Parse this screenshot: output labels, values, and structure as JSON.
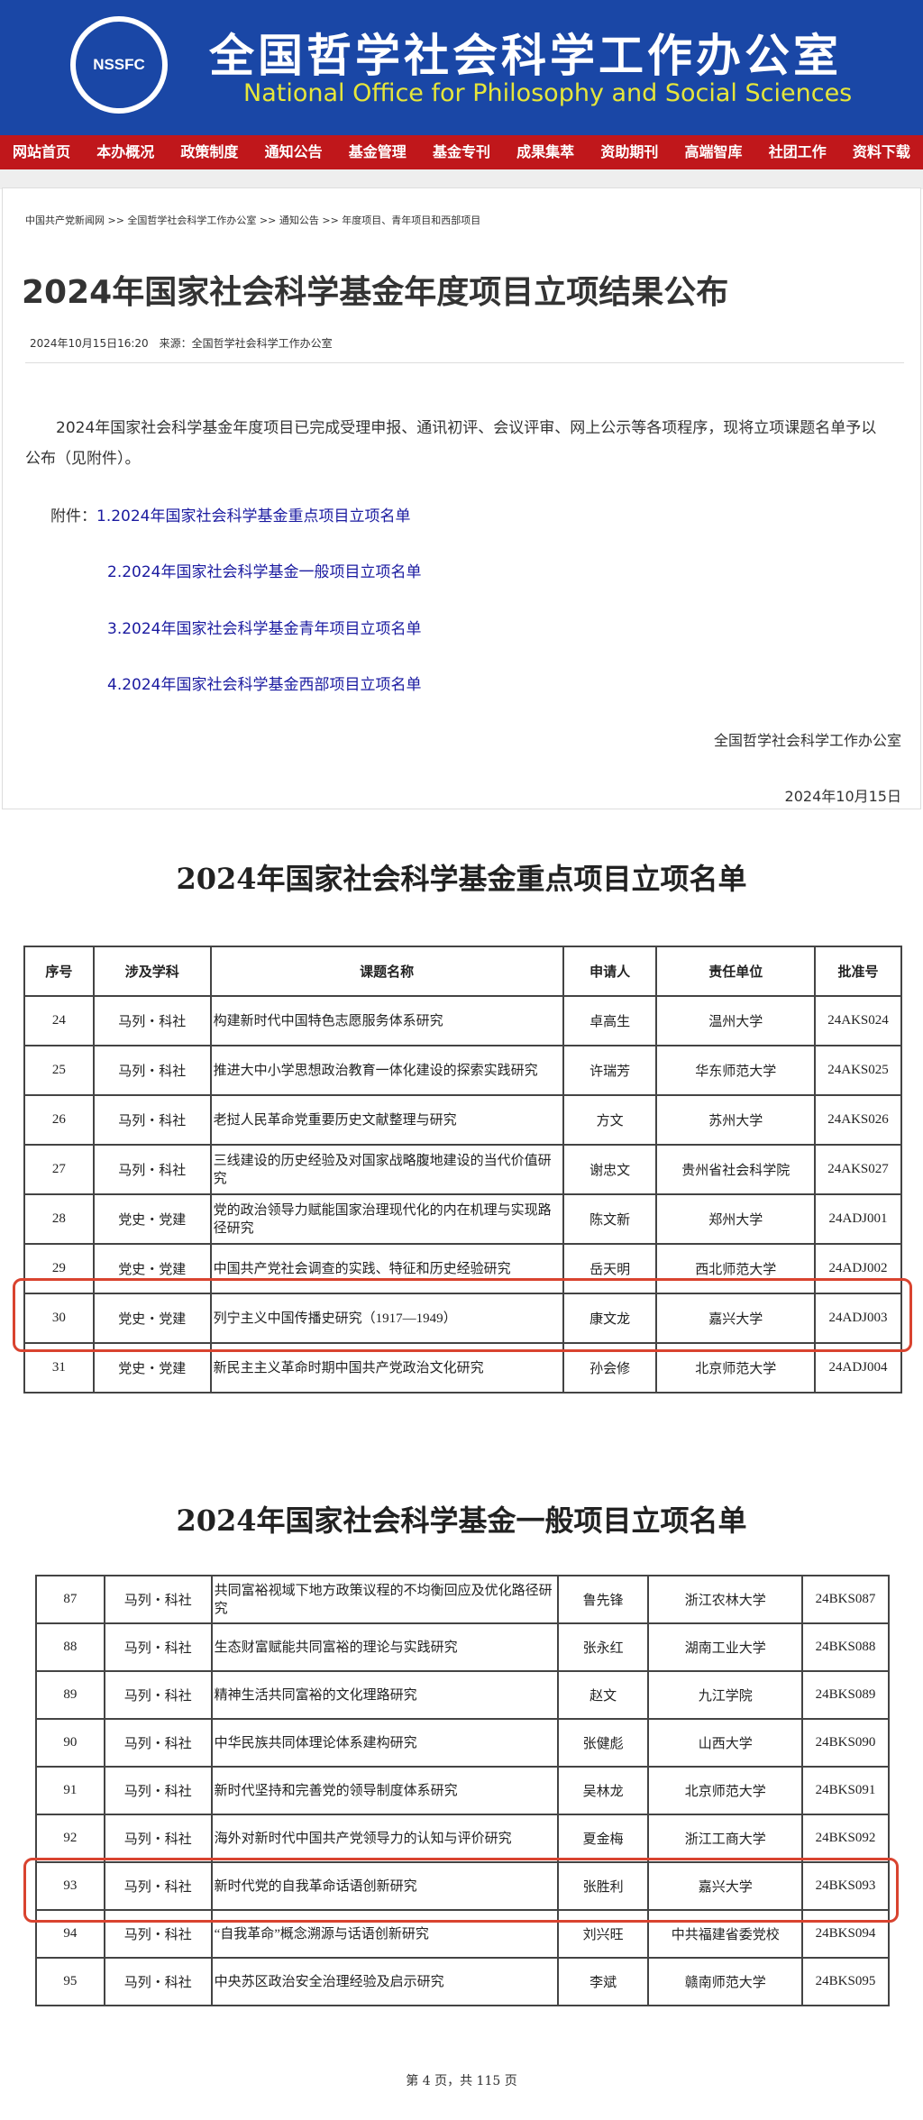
{
  "header": {
    "logo_text": "NSSFC",
    "title": "全国哲学社会科学工作办公室",
    "subtitle": "National Office for Philosophy and Social Sciences"
  },
  "nav": [
    "网站首页",
    "本办概况",
    "政策制度",
    "通知公告",
    "基金管理",
    "基金专刊",
    "成果集萃",
    "资助期刊",
    "高端智库",
    "社团工作",
    "资料下载"
  ],
  "breadcrumb": "中国共产党新闻网 >> 全国哲学社会科学工作办公室 >> 通知公告 >> 年度项目、青年项目和西部项目",
  "article": {
    "title": "2024年国家社会科学基金年度项目立项结果公布",
    "meta": "2024年10月15日16:20　来源：全国哲学社会科学工作办公室",
    "body": "2024年国家社会科学基金年度项目已完成受理申报、通讯初评、会议评审、网上公示等各项程序，现将立项课题名单予以公布（见附件）。",
    "attachments_label": "附件：",
    "attachments": [
      "1.2024年国家社会科学基金重点项目立项名单",
      "2.2024年国家社会科学基金一般项目立项名单",
      "3.2024年国家社会科学基金青年项目立项名单",
      "4.2024年国家社会科学基金西部项目立项名单"
    ],
    "signature": "全国哲学社会科学工作办公室",
    "date": "2024年10月15日"
  },
  "table1": {
    "title": "2024年国家社会科学基金重点项目立项名单",
    "headers": [
      "序号",
      "涉及学科",
      "课题名称",
      "申请人",
      "责任单位",
      "批准号"
    ],
    "rows": [
      [
        "24",
        "马列・科社",
        "构建新时代中国特色志愿服务体系研究",
        "卓高生",
        "温州大学",
        "24AKS024"
      ],
      [
        "25",
        "马列・科社",
        "推进大中小学思想政治教育一体化建设的探索实践研究",
        "许瑞芳",
        "华东师范大学",
        "24AKS025"
      ],
      [
        "26",
        "马列・科社",
        "老挝人民革命党重要历史文献整理与研究",
        "方文",
        "苏州大学",
        "24AKS026"
      ],
      [
        "27",
        "马列・科社",
        "三线建设的历史经验及对国家战略腹地建设的当代价值研究",
        "谢忠文",
        "贵州省社会科学院",
        "24AKS027"
      ],
      [
        "28",
        "党史・党建",
        "党的政治领导力赋能国家治理现代化的内在机理与实现路径研究",
        "陈文新",
        "郑州大学",
        "24ADJ001"
      ],
      [
        "29",
        "党史・党建",
        "中国共产党社会调查的实践、特征和历史经验研究",
        "岳天明",
        "西北师范大学",
        "24ADJ002"
      ],
      [
        "30",
        "党史・党建",
        "列宁主义中国传播史研究（1917—1949）",
        "康文龙",
        "嘉兴大学",
        "24ADJ003"
      ],
      [
        "31",
        "党史・党建",
        "新民主主义革命时期中国共产党政治文化研究",
        "孙会修",
        "北京师范大学",
        "24ADJ004"
      ]
    ],
    "highlight_row": "30"
  },
  "table2": {
    "title": "2024年国家社会科学基金一般项目立项名单",
    "rows": [
      [
        "87",
        "马列・科社",
        "共同富裕视域下地方政策议程的不均衡回应及优化路径研究",
        "鲁先锋",
        "浙江农林大学",
        "24BKS087"
      ],
      [
        "88",
        "马列・科社",
        "生态财富赋能共同富裕的理论与实践研究",
        "张永红",
        "湖南工业大学",
        "24BKS088"
      ],
      [
        "89",
        "马列・科社",
        "精神生活共同富裕的文化理路研究",
        "赵文",
        "九江学院",
        "24BKS089"
      ],
      [
        "90",
        "马列・科社",
        "中华民族共同体理论体系建构研究",
        "张健彪",
        "山西大学",
        "24BKS090"
      ],
      [
        "91",
        "马列・科社",
        "新时代坚持和完善党的领导制度体系研究",
        "吴林龙",
        "北京师范大学",
        "24BKS091"
      ],
      [
        "92",
        "马列・科社",
        "海外对新时代中国共产党领导力的认知与评价研究",
        "夏金梅",
        "浙江工商大学",
        "24BKS092"
      ],
      [
        "93",
        "马列・科社",
        "新时代党的自我革命话语创新研究",
        "张胜利",
        "嘉兴大学",
        "24BKS093"
      ],
      [
        "94",
        "马列・科社",
        "“自我革命”概念溯源与话语创新研究",
        "刘兴旺",
        "中共福建省委党校",
        "24BKS094"
      ],
      [
        "95",
        "马列・科社",
        "中央苏区政治安全治理经验及启示研究",
        "李斌",
        "赣南师范大学",
        "24BKS095"
      ]
    ],
    "highlight_row": "93"
  },
  "page_footer": "第 4 页，共 115 页",
  "colors": {
    "header_blue": "#1a47a6",
    "nav_red": "#c0171b",
    "highlight": "#d9432f"
  }
}
